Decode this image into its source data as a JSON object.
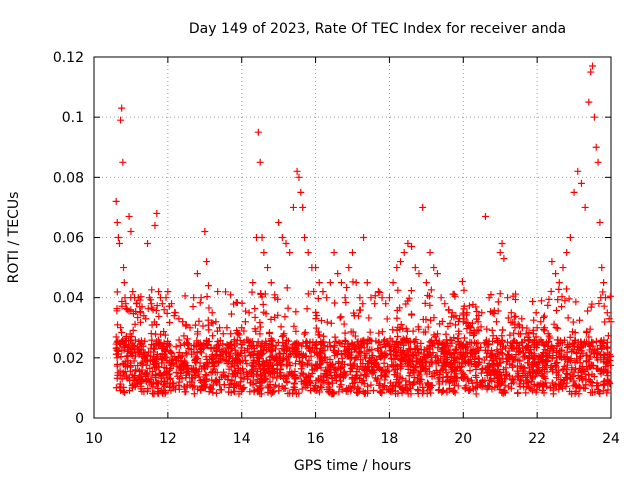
{
  "chart_data": {
    "type": "scatter",
    "title": "Day 149 of 2023, Rate Of TEC Index for receiver anda",
    "xlabel": "GPS time / hours",
    "ylabel": "ROTI / TECUs",
    "xlim": [
      10,
      24
    ],
    "ylim": [
      0,
      0.12
    ],
    "xticks": [
      10,
      12,
      14,
      16,
      18,
      20,
      22,
      24
    ],
    "yticks": [
      0,
      0.02,
      0.04,
      0.06,
      0.08,
      0.1,
      0.12
    ],
    "xtick_labels": [
      "10",
      "12",
      "14",
      "16",
      "18",
      "20",
      "22",
      "24"
    ],
    "ytick_labels": [
      "0",
      "0.02",
      "0.04",
      "0.06",
      "0.08",
      "0.1",
      "0.12"
    ],
    "grid": true,
    "marker": "+",
    "color": "#ff0000",
    "series": [
      {
        "x": [
          10.6,
          10.63,
          10.66,
          10.69,
          10.72,
          10.75,
          10.78,
          10.8,
          10.82,
          10.84,
          10.86,
          10.9,
          10.95,
          11.0,
          11.05,
          11.1,
          11.15,
          11.2,
          11.25,
          11.3,
          11.35,
          11.4,
          11.45,
          11.5,
          11.55,
          11.6,
          11.65,
          11.7,
          11.75,
          11.8,
          11.85,
          11.9,
          11.95,
          12.0,
          12.1,
          12.2,
          12.3,
          12.4,
          12.5,
          12.6,
          12.7,
          12.8,
          12.9,
          13.0,
          13.05,
          13.1,
          13.2,
          13.3,
          13.4,
          13.5,
          13.6,
          13.7,
          13.8,
          13.9,
          14.0,
          14.1,
          14.2,
          14.3,
          14.4,
          14.45,
          14.5,
          14.55,
          14.6,
          14.7,
          14.8,
          14.9,
          15.0,
          15.1,
          15.2,
          15.3,
          15.4,
          15.5,
          15.55,
          15.6,
          15.65,
          15.7,
          15.8,
          15.9,
          16.0,
          16.1,
          16.2,
          16.3,
          16.4,
          16.5,
          16.6,
          16.7,
          16.8,
          16.9,
          17.0,
          17.1,
          17.2,
          17.3,
          17.4,
          17.5,
          17.6,
          17.7,
          17.8,
          17.9,
          18.0,
          18.1,
          18.2,
          18.3,
          18.4,
          18.5,
          18.6,
          18.7,
          18.8,
          18.9,
          19.0,
          19.1,
          19.2,
          19.3,
          19.4,
          19.5,
          19.6,
          19.7,
          19.8,
          19.9,
          20.0,
          20.1,
          20.2,
          20.3,
          20.4,
          20.5,
          20.6,
          20.7,
          20.8,
          20.9,
          21.0,
          21.05,
          21.1,
          21.2,
          21.3,
          21.4,
          21.5,
          21.6,
          21.7,
          21.8,
          21.9,
          22.0,
          22.1,
          22.2,
          22.3,
          22.4,
          22.5,
          22.6,
          22.7,
          22.8,
          22.9,
          23.0,
          23.1,
          23.2,
          23.3,
          23.4,
          23.45,
          23.5,
          23.55,
          23.6,
          23.65,
          23.7,
          23.75,
          23.8,
          23.85,
          23.9,
          23.95,
          24.0
        ],
        "y": [
          0.072,
          0.065,
          0.06,
          0.058,
          0.099,
          0.103,
          0.085,
          0.05,
          0.045,
          0.04,
          0.038,
          0.036,
          0.067,
          0.062,
          0.042,
          0.04,
          0.038,
          0.04,
          0.035,
          0.037,
          0.034,
          0.033,
          0.058,
          0.04,
          0.038,
          0.036,
          0.064,
          0.068,
          0.042,
          0.04,
          0.038,
          0.036,
          0.04,
          0.042,
          0.038,
          0.035,
          0.033,
          0.032,
          0.031,
          0.03,
          0.04,
          0.048,
          0.04,
          0.062,
          0.052,
          0.044,
          0.035,
          0.032,
          0.03,
          0.028,
          0.03,
          0.028,
          0.026,
          0.028,
          0.03,
          0.032,
          0.035,
          0.045,
          0.06,
          0.095,
          0.085,
          0.06,
          0.055,
          0.05,
          0.045,
          0.04,
          0.065,
          0.06,
          0.058,
          0.055,
          0.07,
          0.082,
          0.08,
          0.075,
          0.07,
          0.06,
          0.055,
          0.05,
          0.05,
          0.045,
          0.042,
          0.04,
          0.045,
          0.055,
          0.048,
          0.045,
          0.04,
          0.05,
          0.055,
          0.045,
          0.04,
          0.06,
          0.045,
          0.04,
          0.038,
          0.042,
          0.04,
          0.038,
          0.04,
          0.045,
          0.05,
          0.052,
          0.055,
          0.058,
          0.057,
          0.05,
          0.048,
          0.07,
          0.045,
          0.055,
          0.05,
          0.048,
          0.04,
          0.038,
          0.036,
          0.035,
          0.034,
          0.033,
          0.032,
          0.035,
          0.03,
          0.028,
          0.032,
          0.035,
          0.067,
          0.04,
          0.035,
          0.032,
          0.055,
          0.058,
          0.053,
          0.04,
          0.035,
          0.03,
          0.028,
          0.03,
          0.028,
          0.026,
          0.028,
          0.03,
          0.032,
          0.03,
          0.028,
          0.052,
          0.048,
          0.045,
          0.05,
          0.055,
          0.06,
          0.075,
          0.082,
          0.078,
          0.07,
          0.105,
          0.115,
          0.117,
          0.1,
          0.09,
          0.085,
          0.065,
          0.05,
          0.045,
          0.04,
          0.035,
          0.033,
          0.032
        ]
      }
    ]
  }
}
